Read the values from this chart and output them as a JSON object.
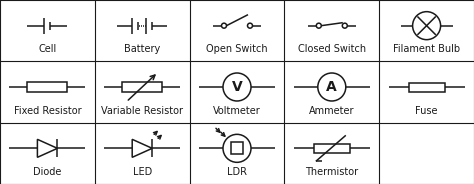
{
  "grid_cols": 5,
  "grid_rows": 3,
  "background": "#ffffff",
  "line_color": "#1a1a1a",
  "text_color": "#1a1a1a",
  "font_size": 7.0,
  "labels": [
    [
      "Cell",
      "Battery",
      "Open Switch",
      "Closed Switch",
      "Filament Bulb"
    ],
    [
      "Fixed Resistor",
      "Variable Resistor",
      "Voltmeter",
      "Ammeter",
      "Fuse"
    ],
    [
      "Diode",
      "LED",
      "LDR",
      "Thermistor",
      ""
    ]
  ]
}
